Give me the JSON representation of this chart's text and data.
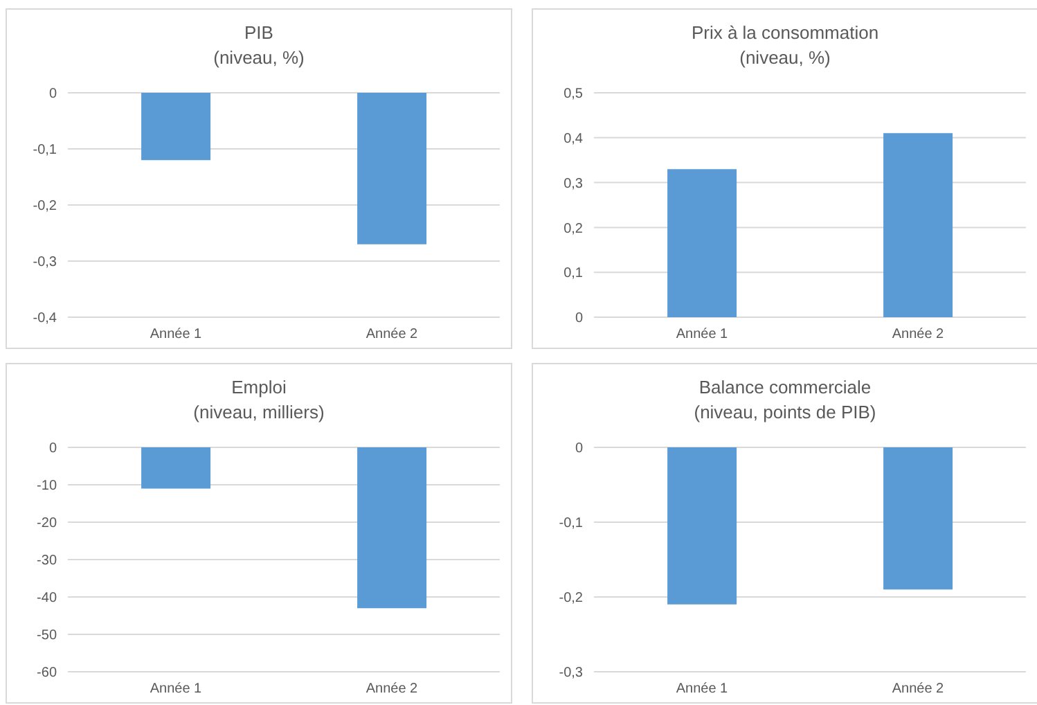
{
  "chart_data": [
    {
      "type": "bar",
      "title": "PIB",
      "subtitle": "(niveau, %)",
      "categories": [
        "Année 1",
        "Année 2"
      ],
      "values": [
        -0.12,
        -0.27
      ],
      "color": "#5b9bd5",
      "ylim": [
        -0.4,
        0
      ],
      "yticks": [
        {
          "value": -0.4,
          "label": "-0,4"
        },
        {
          "value": -0.3,
          "label": "-0,3"
        },
        {
          "value": -0.2,
          "label": "-0,2"
        },
        {
          "value": -0.1,
          "label": "-0,1"
        },
        0
      ],
      "grid": "y"
    },
    {
      "type": "bar",
      "title": "Prix à la consommation",
      "subtitle": "(niveau, %)",
      "categories": [
        "Année 1",
        "Année 2"
      ],
      "values": [
        0.33,
        0.41
      ],
      "color": "#5b9bd5",
      "ylim": [
        0,
        0.5
      ],
      "yticks": [
        0,
        {
          "value": 0.1,
          "label": "0,1"
        },
        {
          "value": 0.2,
          "label": "0,2"
        },
        {
          "value": 0.3,
          "label": "0,3"
        },
        {
          "value": 0.4,
          "label": "0,4"
        },
        {
          "value": 0.5,
          "label": "0,5"
        }
      ],
      "grid": "y"
    },
    {
      "type": "bar",
      "title": "Emploi",
      "subtitle": "(niveau, milliers)",
      "categories": [
        "Année 1",
        "Année 2"
      ],
      "values": [
        -11,
        -43
      ],
      "color": "#5b9bd5",
      "ylim": [
        -60,
        0
      ],
      "yticks": [
        -60,
        -50,
        -40,
        -30,
        -20,
        -10,
        0
      ],
      "grid": "y"
    },
    {
      "type": "bar",
      "title": "Balance commerciale",
      "subtitle": "(niveau, points de PIB)",
      "categories": [
        "Année 1",
        "Année 2"
      ],
      "values": [
        -0.21,
        -0.19
      ],
      "color": "#5b9bd5",
      "ylim": [
        -0.3,
        0
      ],
      "yticks": [
        {
          "value": -0.3,
          "label": "-0,3"
        },
        {
          "value": -0.2,
          "label": "-0,2"
        },
        {
          "value": -0.1,
          "label": "-0,1"
        },
        0
      ],
      "grid": "y"
    }
  ]
}
